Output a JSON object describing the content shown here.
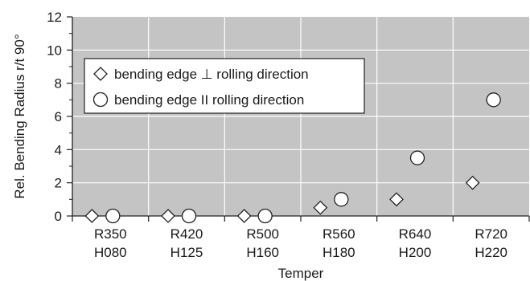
{
  "chart_data": {
    "type": "scatter",
    "title": "",
    "xlabel": "Temper",
    "ylabel": "Rel. Bending Radius r/t 90°",
    "ylim": [
      0,
      12
    ],
    "yticks": [
      "0",
      "2",
      "4",
      "6",
      "8",
      "10",
      "12"
    ],
    "grid": true,
    "legend_position": "upper-left",
    "categories": [
      [
        "R350",
        "H080"
      ],
      [
        "R420",
        "H125"
      ],
      [
        "R500",
        "H160"
      ],
      [
        "R560",
        "H180"
      ],
      [
        "R640",
        "H200"
      ],
      [
        "R720",
        "H220"
      ]
    ],
    "series": [
      {
        "name": "bending edge ⊥ rolling direction",
        "marker": "diamond",
        "values": [
          0,
          0,
          0,
          0.5,
          1,
          2
        ]
      },
      {
        "name": "bending edge II rolling direction",
        "marker": "circle",
        "values": [
          0,
          0,
          0,
          1,
          3.5,
          7
        ]
      }
    ]
  },
  "colors": {
    "plot_background": "#c4c4c4",
    "grid": "#ffffff",
    "marker_fill": "#ffffff",
    "marker_stroke": "#222222"
  }
}
